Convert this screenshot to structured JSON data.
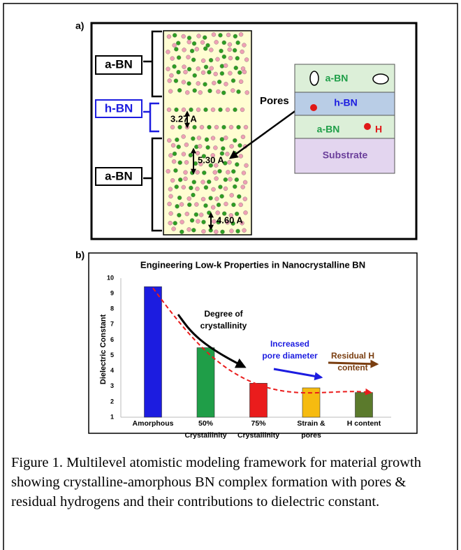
{
  "panel_a": {
    "label": "a)",
    "left_labels": [
      "a-BN",
      "h-BN",
      "a-BN"
    ],
    "spacings": [
      "3.27 A",
      "5.30 A",
      "4.60 A"
    ],
    "pores": "Pores",
    "layers": [
      "a-BN",
      "h-BN",
      "a-BN",
      "Substrate"
    ],
    "hydrogen": "H"
  },
  "chart_data": {
    "type": "bar",
    "label": "b)",
    "title": "Engineering Low-k Properties in Nanocrystalline BN",
    "y_label": "Dielectric Constant",
    "categories": [
      "Amorphous",
      "50%\nCrystallinity",
      "75%\nCrystallinity",
      "Strain &\npores",
      "H content"
    ],
    "values": [
      9.45,
      5.5,
      3.2,
      2.9,
      2.6
    ],
    "colors": [
      "#1c1ce0",
      "#1f9e48",
      "#ea1c1c",
      "#f6bb10",
      "#5b7a2c"
    ],
    "ylim": [
      1,
      10
    ],
    "yticks": [
      1,
      2,
      3,
      4,
      5,
      6,
      7,
      8,
      9,
      10
    ],
    "grid": false,
    "annotations": [
      {
        "text": "Degree of\ncrystallinity",
        "color": "#000000"
      },
      {
        "text": "Increased\npore diameter",
        "color": "#1c1ce0"
      },
      {
        "text": "Residual H\ncontent",
        "color": "#7a3e10"
      }
    ]
  },
  "caption": "Figure 1. Multilevel atomistic modeling framework for material growth showing crystalline-amorphous BN complex formation with pores & residual hydrogens and their contributions to dielectric constant."
}
